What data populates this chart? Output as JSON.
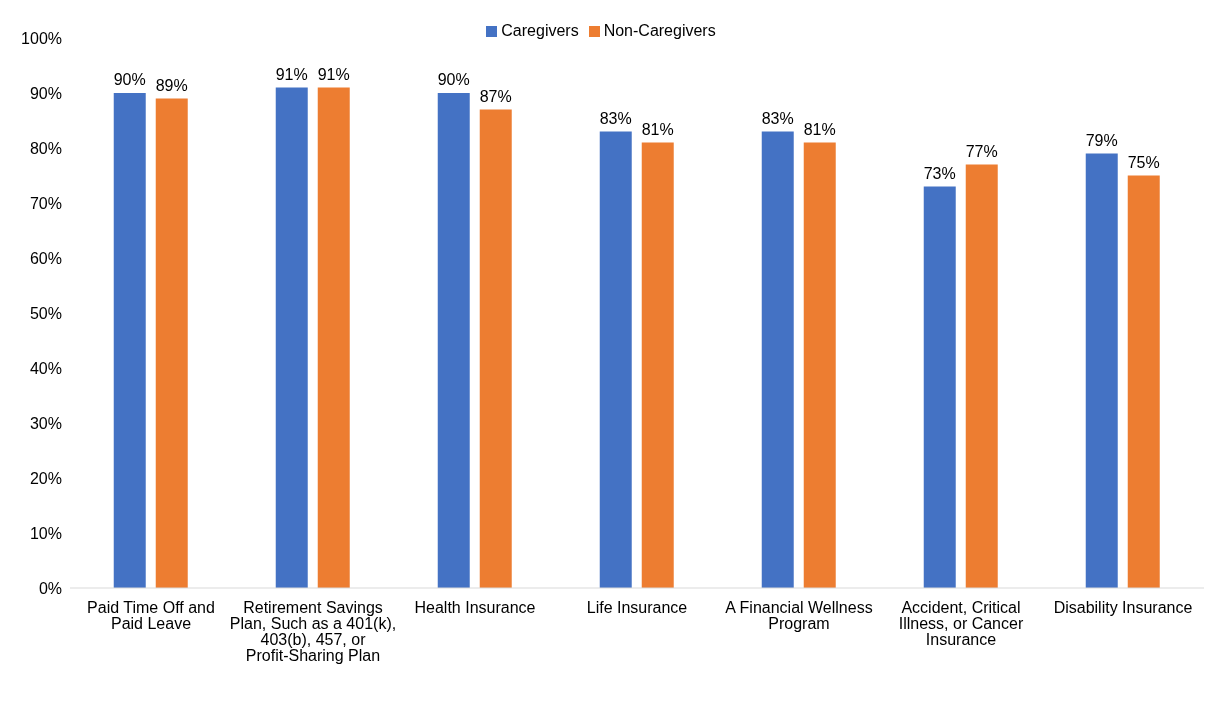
{
  "chart_data": {
    "type": "bar",
    "categories": [
      "Paid Time Off and Paid Leave",
      "Retirement Savings Plan, Such as a 401(k), 403(b), 457, or Profit-Sharing Plan",
      "Health Insurance",
      "Life Insurance",
      "A Financial Wellness Program",
      "Accident, Critical Illness, or Cancer Insurance",
      "Disability Insurance"
    ],
    "series": [
      {
        "name": "Caregivers",
        "color": "#4472c4",
        "values": [
          90,
          91,
          90,
          83,
          83,
          73,
          79
        ],
        "value_labels": [
          "90%",
          "91%",
          "90%",
          "83%",
          "83%",
          "73%",
          "79%"
        ]
      },
      {
        "name": "Non-Caregivers",
        "color": "#ed7d31",
        "values": [
          89,
          91,
          87,
          81,
          81,
          77,
          75
        ],
        "value_labels": [
          "89%",
          "91%",
          "87%",
          "81%",
          "81%",
          "77%",
          "75%"
        ]
      }
    ],
    "ylim": [
      0,
      100
    ],
    "yticks": [
      {
        "value": 0,
        "label": "0%"
      },
      {
        "value": 10,
        "label": "10%"
      },
      {
        "value": 20,
        "label": "20%"
      },
      {
        "value": 30,
        "label": "30%"
      },
      {
        "value": 40,
        "label": "40%"
      },
      {
        "value": 50,
        "label": "50%"
      },
      {
        "value": 60,
        "label": "60%"
      },
      {
        "value": 70,
        "label": "70%"
      },
      {
        "value": 80,
        "label": "80%"
      },
      {
        "value": 90,
        "label": "90%"
      },
      {
        "value": 100,
        "label": "100%"
      }
    ],
    "legend": "top",
    "grid": false
  }
}
